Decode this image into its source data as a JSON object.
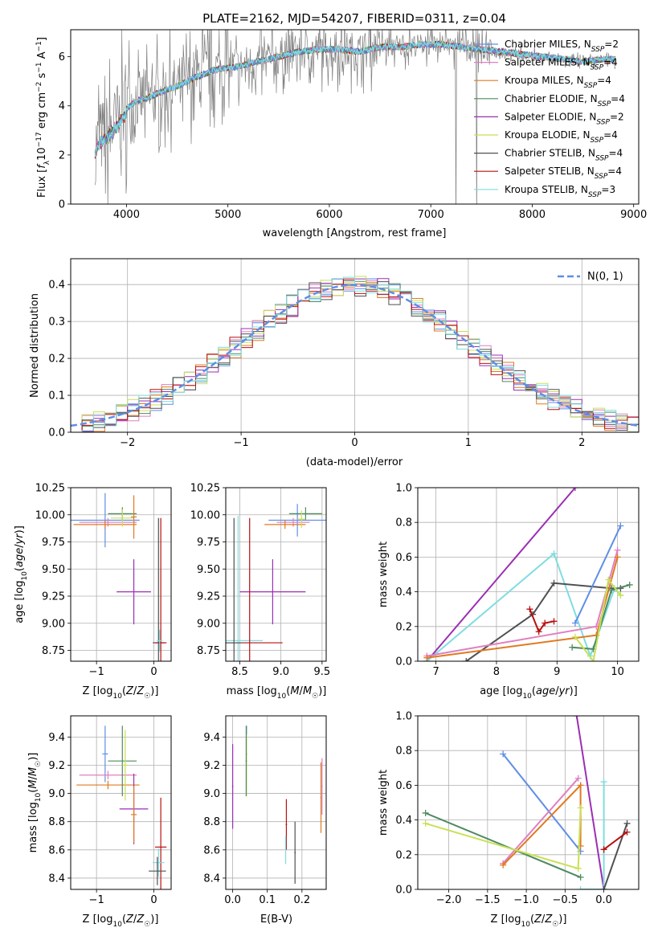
{
  "figure": {
    "title": "PLATE=2162, MJD=54207, FIBERID=0311, z=0.04"
  },
  "colors": {
    "chabrier_miles": "#5f8ee6",
    "salpeter_miles": "#e07fbf",
    "kroupa_miles": "#e07a21",
    "chabrier_elodie": "#4e8a5f",
    "salpeter_elodie": "#9b2fb3",
    "kroupa_elodie": "#c8e056",
    "chabrier_stelib": "#505050",
    "salpeter_stelib": "#b81010",
    "kroupa_stelib": "#7fdde0",
    "data_spectrum": "#808080",
    "normal_curve": "#5f8ee6"
  },
  "chart_data": [
    {
      "id": "spectrum",
      "type": "line",
      "title": "PLATE=2162, MJD=54207, FIBERID=0311, z=0.04",
      "xlabel": "wavelength [Angstrom, rest frame]",
      "ylabel": "Flux [f_λ10^-17 erg cm^-2 s^-1 A^-1]",
      "xlim": [
        3450,
        9050
      ],
      "ylim": [
        0,
        7.1
      ],
      "xticks": [
        4000,
        5000,
        6000,
        7000,
        8000,
        9000
      ],
      "yticks": [
        0,
        2,
        4,
        6
      ],
      "legend_position": "top-right",
      "series": [
        {
          "name": "Chabrier MILES, N_SSP=2",
          "color_key": "chabrier_miles"
        },
        {
          "name": "Salpeter MILES, N_SSP=4",
          "color_key": "salpeter_miles"
        },
        {
          "name": "Kroupa MILES, N_SSP=4",
          "color_key": "kroupa_miles"
        },
        {
          "name": "Chabrier ELODIE, N_SSP=4",
          "color_key": "chabrier_elodie"
        },
        {
          "name": "Salpeter ELODIE, N_SSP=2",
          "color_key": "salpeter_elodie"
        },
        {
          "name": "Kroupa ELODIE, N_SSP=4",
          "color_key": "kroupa_elodie"
        },
        {
          "name": "Chabrier STELIB, N_SSP=4",
          "color_key": "chabrier_stelib"
        },
        {
          "name": "Salpeter STELIB, N_SSP=4",
          "color_key": "salpeter_stelib"
        },
        {
          "name": "Kroupa STELIB, N_SSP=3",
          "color_key": "kroupa_stelib"
        }
      ],
      "model_curve": {
        "x": [
          3680,
          3720,
          3800,
          3900,
          4000,
          4100,
          4200,
          4300,
          4500,
          4700,
          4900,
          5100,
          5300,
          5500,
          5700,
          5900,
          6100,
          6300,
          6500,
          6700,
          6900,
          7100,
          7300,
          7500,
          7700,
          7900,
          8100,
          8300,
          8500,
          8700,
          8820
        ],
        "y": [
          2.3,
          2.6,
          2.9,
          3.3,
          3.9,
          4.2,
          4.3,
          4.5,
          4.8,
          5.2,
          5.5,
          5.6,
          5.8,
          6.0,
          6.2,
          6.3,
          6.3,
          6.2,
          6.4,
          6.4,
          6.5,
          6.5,
          6.4,
          6.3,
          6.2,
          6.1,
          6.0,
          5.9,
          5.8,
          5.9,
          5.9
        ]
      }
    },
    {
      "id": "residuals",
      "type": "histogram",
      "xlabel": "(data-model)/error",
      "ylabel": "Normed distribution",
      "xlim": [
        -2.5,
        2.5
      ],
      "ylim": [
        0,
        0.47
      ],
      "xticks": [
        -2,
        -1,
        0,
        1,
        2
      ],
      "yticks": [
        0.0,
        0.1,
        0.2,
        0.3,
        0.4
      ],
      "legend": "N(0, 1)",
      "legend_position": "top-right",
      "bin_width": 0.1
    },
    {
      "id": "age_vs_Z",
      "type": "errorbar",
      "xlabel": "Z [log10(Z/Z☉)]",
      "ylabel": "age  [log10(age/yr)]",
      "xlim": [
        -1.45,
        0.3
      ],
      "ylim": [
        8.65,
        10.25
      ],
      "xticks": [
        -1,
        0
      ],
      "yticks": [
        8.75,
        9.0,
        9.25,
        9.5,
        9.75,
        10.0,
        10.25
      ],
      "points": [
        {
          "color_key": "chabrier_miles",
          "x": -0.85,
          "y": 9.95,
          "xerr": 0.6,
          "yerr": 0.25
        },
        {
          "color_key": "salpeter_miles",
          "x": -0.8,
          "y": 9.93,
          "xerr": 0.5,
          "yerr": 0.04
        },
        {
          "color_key": "kroupa_miles",
          "x": -0.85,
          "y": 9.91,
          "xerr": 0.55,
          "yerr": 0.04
        },
        {
          "color_key": "chabrier_elodie",
          "x": -0.55,
          "y": 10.01,
          "xerr": 0.25,
          "yerr": 0.06
        },
        {
          "color_key": "kroupa_elodie",
          "x": -0.55,
          "y": 9.97,
          "xerr": 0.2,
          "yerr": 0.08
        },
        {
          "color_key": "salpeter_elodie",
          "x": -0.35,
          "y": 9.29,
          "xerr": 0.3,
          "yerr": 0.3
        },
        {
          "color_key": "kroupa_miles",
          "x": -0.35,
          "y": 9.98,
          "xerr": 0.05,
          "yerr": 0.2
        },
        {
          "color_key": "chabrier_stelib",
          "x": 0.08,
          "y": 8.82,
          "xerr": 0.1,
          "yerr": 1.15
        },
        {
          "color_key": "salpeter_stelib",
          "x": 0.12,
          "y": 8.82,
          "xerr": 0.1,
          "yerr": 1.15
        },
        {
          "color_key": "kroupa_stelib",
          "x": 0.1,
          "y": 8.84,
          "xerr": 0.05,
          "yerr": 0.1
        }
      ]
    },
    {
      "id": "age_vs_mass",
      "type": "errorbar",
      "xlabel": "mass [log10(M/M☉)]",
      "xlim": [
        8.33,
        9.55
      ],
      "ylim": [
        8.65,
        10.25
      ],
      "xticks": [
        8.5,
        9.0,
        9.5
      ],
      "yticks": [
        8.75,
        9.0,
        9.25,
        9.5,
        9.75,
        10.0,
        10.25
      ],
      "points": [
        {
          "color_key": "chabrier_miles",
          "x": 9.2,
          "y": 9.95,
          "xerr": 0.35,
          "yerr": 0.15
        },
        {
          "color_key": "salpeter_miles",
          "x": 9.15,
          "y": 9.93,
          "xerr": 0.2,
          "yerr": 0.04
        },
        {
          "color_key": "kroupa_miles",
          "x": 9.05,
          "y": 9.91,
          "xerr": 0.25,
          "yerr": 0.04
        },
        {
          "color_key": "chabrier_elodie",
          "x": 9.3,
          "y": 10.01,
          "xerr": 0.2,
          "yerr": 0.06
        },
        {
          "color_key": "kroupa_elodie",
          "x": 9.25,
          "y": 9.96,
          "xerr": 0.05,
          "yerr": 0.08
        },
        {
          "color_key": "salpeter_elodie",
          "x": 8.9,
          "y": 9.29,
          "xerr": 0.4,
          "yerr": 0.3
        },
        {
          "color_key": "kroupa_stelib",
          "x": 8.48,
          "y": 8.84,
          "xerr": 0.3,
          "yerr": 1.15
        },
        {
          "color_key": "salpeter_stelib",
          "x": 8.62,
          "y": 8.82,
          "xerr": 0.4,
          "yerr": 1.15
        },
        {
          "color_key": "chabrier_stelib",
          "x": 8.43,
          "y": 8.82,
          "xerr": 0.1,
          "yerr": 1.15
        }
      ]
    },
    {
      "id": "massweight_vs_age",
      "type": "line",
      "xlabel": "age  [log10(age/yr)]",
      "ylabel": "mass weight",
      "xlim": [
        6.7,
        10.35
      ],
      "ylim": [
        0,
        1.0
      ],
      "xticks": [
        7,
        8,
        9,
        10
      ],
      "yticks": [
        0.0,
        0.2,
        0.4,
        0.6,
        0.8,
        1.0
      ],
      "series": [
        {
          "color_key": "salpeter_elodie",
          "x": [
            6.85,
            9.3
          ],
          "y": [
            0.0,
            1.0
          ]
        },
        {
          "color_key": "kroupa_stelib",
          "x": [
            6.85,
            8.95,
            9.55,
            9.95,
            10.05
          ],
          "y": [
            0.0,
            0.62,
            0.03,
            0.42,
            0.38
          ]
        },
        {
          "color_key": "chabrier_stelib",
          "x": [
            7.5,
            8.6,
            8.95,
            9.9,
            10.05
          ],
          "y": [
            0.0,
            0.27,
            0.45,
            0.42,
            0.42
          ]
        },
        {
          "color_key": "salpeter_miles",
          "x": [
            6.85,
            9.65,
            10.0
          ],
          "y": [
            0.03,
            0.2,
            0.64
          ]
        },
        {
          "color_key": "kroupa_miles",
          "x": [
            6.85,
            9.65,
            10.0
          ],
          "y": [
            0.02,
            0.15,
            0.6
          ]
        },
        {
          "color_key": "chabrier_miles",
          "x": [
            9.3,
            10.05
          ],
          "y": [
            0.22,
            0.78
          ]
        },
        {
          "color_key": "chabrier_elodie",
          "x": [
            9.25,
            9.6,
            9.9,
            10.2
          ],
          "y": [
            0.08,
            0.07,
            0.41,
            0.44
          ]
        },
        {
          "color_key": "kroupa_elodie",
          "x": [
            9.3,
            9.6,
            9.85,
            10.05
          ],
          "y": [
            0.14,
            0.0,
            0.47,
            0.38
          ]
        },
        {
          "color_key": "salpeter_stelib",
          "x": [
            8.55,
            8.7,
            8.8,
            8.95
          ],
          "y": [
            0.3,
            0.17,
            0.22,
            0.23
          ]
        }
      ]
    },
    {
      "id": "mass_vs_Z",
      "type": "errorbar",
      "xlabel": "Z [log10(Z/Z☉)]",
      "ylabel": "mass [log10(M/M☉)]",
      "xlim": [
        -1.45,
        0.3
      ],
      "ylim": [
        8.32,
        9.55
      ],
      "xticks": [
        -1,
        0
      ],
      "yticks": [
        8.4,
        8.6,
        8.8,
        9.0,
        9.2,
        9.4
      ],
      "points": [
        {
          "color_key": "chabrier_miles",
          "x": -0.85,
          "y": 9.28,
          "xerr": 0.05,
          "yerr": 0.2
        },
        {
          "color_key": "salpeter_miles",
          "x": -0.8,
          "y": 9.13,
          "xerr": 0.5,
          "yerr": 0.03
        },
        {
          "color_key": "kroupa_miles",
          "x": -0.8,
          "y": 9.06,
          "xerr": 0.55,
          "yerr": 0.03
        },
        {
          "color_key": "chabrier_elodie",
          "x": -0.55,
          "y": 9.23,
          "xerr": 0.25,
          "yerr": 0.25
        },
        {
          "color_key": "kroupa_elodie",
          "x": -0.5,
          "y": 9.2,
          "xerr": 0.05,
          "yerr": 0.25
        },
        {
          "color_key": "salpeter_elodie",
          "x": -0.35,
          "y": 8.89,
          "xerr": 0.25,
          "yerr": 0.25
        },
        {
          "color_key": "kroupa_miles",
          "x": -0.35,
          "y": 8.85,
          "xerr": 0.05,
          "yerr": 0.2
        },
        {
          "color_key": "salpeter_stelib",
          "x": 0.12,
          "y": 8.62,
          "xerr": 0.1,
          "yerr": 0.35
        },
        {
          "color_key": "kroupa_stelib",
          "x": 0.08,
          "y": 8.51,
          "xerr": 0.1,
          "yerr": 0.1
        },
        {
          "color_key": "chabrier_stelib",
          "x": 0.06,
          "y": 8.45,
          "xerr": 0.15,
          "yerr": 0.1
        }
      ]
    },
    {
      "id": "mass_vs_ebv",
      "type": "errorbar",
      "xlabel": "E(B-V)",
      "xlim": [
        -0.02,
        0.27
      ],
      "ylim": [
        8.32,
        9.55
      ],
      "xticks": [
        0.0,
        0.1,
        0.2
      ],
      "yticks": [
        8.4,
        8.6,
        8.8,
        9.0,
        9.2,
        9.4
      ],
      "points": [
        {
          "color_key": "salpeter_elodie",
          "x": 0.0,
          "y": 9.05,
          "xerr": 0.002,
          "yerr": 0.3
        },
        {
          "color_key": "chabrier_miles",
          "x": 0.04,
          "y": 9.28,
          "xerr": 0.002,
          "yerr": 0.2
        },
        {
          "color_key": "kroupa_elodie",
          "x": 0.04,
          "y": 9.2,
          "xerr": 0.002,
          "yerr": 0.22
        },
        {
          "color_key": "chabrier_elodie",
          "x": 0.039,
          "y": 9.23,
          "xerr": 0.002,
          "yerr": 0.25
        },
        {
          "color_key": "salpeter_stelib",
          "x": 0.155,
          "y": 8.78,
          "xerr": 0.002,
          "yerr": 0.18
        },
        {
          "color_key": "kroupa_stelib",
          "x": 0.153,
          "y": 8.6,
          "xerr": 0.002,
          "yerr": 0.1
        },
        {
          "color_key": "chabrier_stelib",
          "x": 0.18,
          "y": 8.58,
          "xerr": 0.002,
          "yerr": 0.22
        },
        {
          "color_key": "kroupa_miles",
          "x": 0.255,
          "y": 8.97,
          "xerr": 0.002,
          "yerr": 0.25
        },
        {
          "color_key": "salpeter_miles",
          "x": 0.258,
          "y": 9.05,
          "xerr": 0.002,
          "yerr": 0.2
        }
      ]
    },
    {
      "id": "massweight_vs_Z",
      "type": "line",
      "xlabel": "Z [log10(Z/Z☉)]",
      "ylabel": "mass weight",
      "xlim": [
        -2.4,
        0.45
      ],
      "ylim": [
        0,
        1.0
      ],
      "xticks": [
        -2.0,
        -1.5,
        -1.0,
        -0.5,
        0.0
      ],
      "yticks": [
        0.0,
        0.2,
        0.4,
        0.6,
        0.8,
        1.0
      ],
      "series": [
        {
          "color_key": "salpeter_elodie",
          "x": [
            -0.35,
            0.0
          ],
          "y": [
            1.0,
            0.0
          ]
        },
        {
          "color_key": "chabrier_miles",
          "x": [
            -1.3,
            -0.3
          ],
          "y": [
            0.78,
            0.22
          ]
        },
        {
          "color_key": "salpeter_miles",
          "x": [
            -1.3,
            -0.33
          ],
          "y": [
            0.15,
            0.64
          ]
        },
        {
          "color_key": "kroupa_miles",
          "x": [
            -1.3,
            -0.3,
            -0.3
          ],
          "y": [
            0.14,
            0.6,
            0.25
          ]
        },
        {
          "color_key": "chabrier_elodie",
          "x": [
            -2.3,
            -0.3
          ],
          "y": [
            0.44,
            0.07
          ]
        },
        {
          "color_key": "kroupa_elodie",
          "x": [
            -2.3,
            -0.33,
            -0.3
          ],
          "y": [
            0.38,
            0.12,
            0.47
          ]
        },
        {
          "color_key": "kroupa_stelib",
          "x": [
            -0.3,
            0.0,
            0.0
          ],
          "y": [
            0.0,
            0.0,
            0.62
          ]
        },
        {
          "color_key": "chabrier_stelib",
          "x": [
            0.0,
            0.3
          ],
          "y": [
            0.0,
            0.38
          ]
        },
        {
          "color_key": "salpeter_stelib",
          "x": [
            0.0,
            0.3
          ],
          "y": [
            0.23,
            0.33
          ]
        }
      ]
    }
  ]
}
